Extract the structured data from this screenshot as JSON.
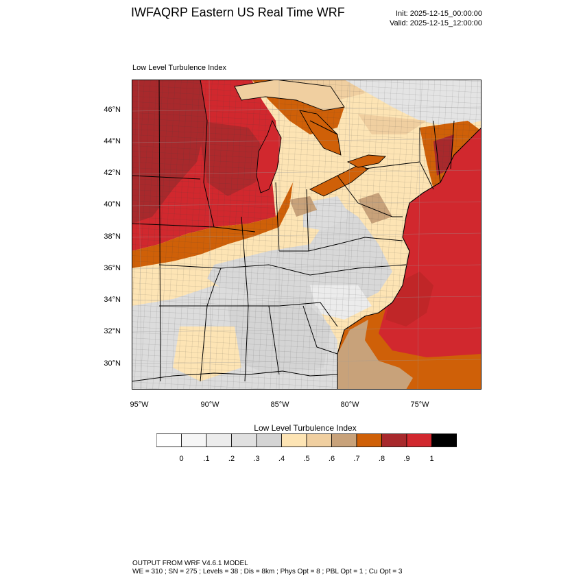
{
  "header": {
    "title": "IWFAQRP Eastern US Real Time WRF",
    "init": "Init: 2025-12-15_00:00:00",
    "valid": "Valid: 2025-12-15_12:00:00"
  },
  "map": {
    "panel_title": "Low Level Turbulence Index",
    "lat_labels": [
      "46°N",
      "44°N",
      "42°N",
      "40°N",
      "38°N",
      "36°N",
      "34°N",
      "32°N",
      "30°N"
    ],
    "lon_labels": [
      "95°W",
      "90°W",
      "85°W",
      "80°W",
      "75°W"
    ],
    "colors": {
      "ocean_high": "#d1282e",
      "dark_red": "#a8292c",
      "orange": "#cf6008",
      "tan": "#c8a27a",
      "light_tan": "#f0cfa0",
      "cream": "#fde4b4",
      "light_gray": "#dcdcdc",
      "pale_gray": "#ececec",
      "border": "#000000"
    }
  },
  "colorbar": {
    "title": "Low Level Turbulence Index",
    "labels": [
      "0",
      ".1",
      ".2",
      ".3",
      ".4",
      ".5",
      ".6",
      ".7",
      ".8",
      ".9",
      "1"
    ],
    "colors": [
      "#ffffff",
      "#f6f6f6",
      "#ececec",
      "#e0e0e0",
      "#d4d4d4",
      "#fde4b4",
      "#f0cfa0",
      "#c8a27a",
      "#cf6008",
      "#a8292c",
      "#d1282e",
      "#000000"
    ]
  },
  "footer": {
    "line1": "OUTPUT FROM WRF V4.6.1 MODEL",
    "line2": "WE = 310 ; SN = 275 ; Levels = 38 ; Dis = 8km ; Phys Opt = 8 ; PBL Opt = 1 ; Cu Opt = 3"
  }
}
